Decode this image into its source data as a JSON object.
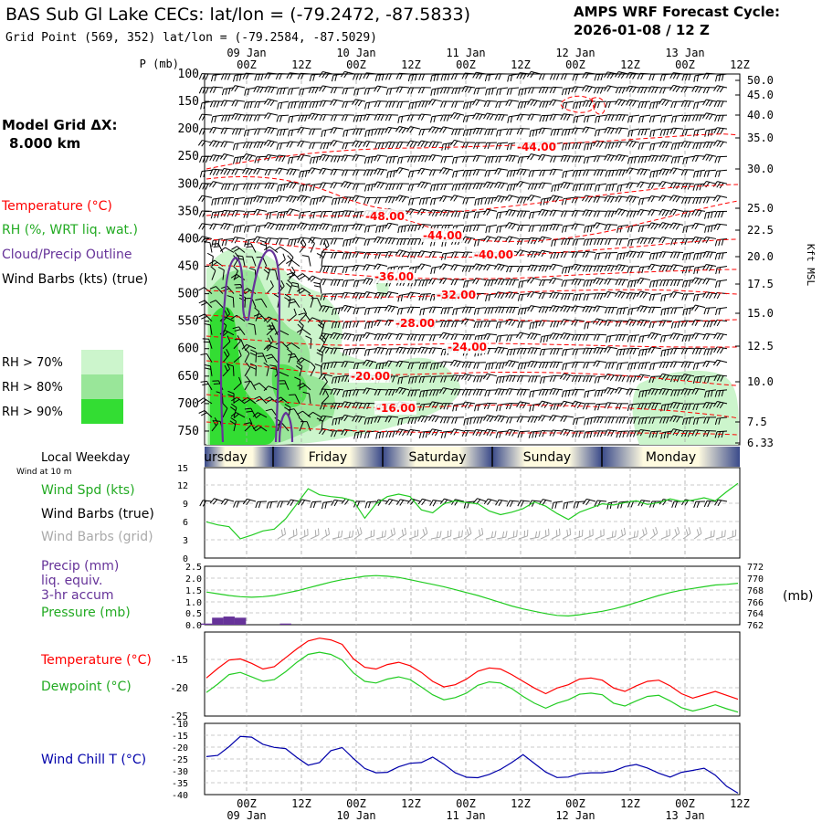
{
  "header": {
    "title": "BAS Sub Gl Lake CECs:  lat/lon = (-79.2472, -87.5833)",
    "subtitle": "Grid Point (569, 352) lat/lon = (-79.2584, -87.5029)",
    "cycle_label": "AMPS WRF Forecast Cycle:",
    "cycle_value": "2026-01-08 / 12  Z"
  },
  "time_axis": {
    "ticks": [
      "00Z",
      "12Z",
      "00Z",
      "12Z",
      "00Z",
      "12Z",
      "00Z",
      "12Z",
      "00Z",
      "12Z"
    ],
    "dates": [
      "09 Jan",
      "10 Jan",
      "11 Jan",
      "12 Jan",
      "13 Jan"
    ],
    "weekdays": [
      "ursday",
      "Friday",
      "Saturday",
      "Sunday",
      "Monday"
    ]
  },
  "sidebar": {
    "grid_label": "Model Grid ΔX:",
    "grid_value": "8.000 km",
    "legend_temperature": "Temperature (°C)",
    "legend_rh": "RH (%, WRT liq. wat.)",
    "legend_cloud": "Cloud/Precip Outline",
    "legend_wind": "Wind Barbs (kts) (true)",
    "rh_levels": [
      "RH > 70%",
      "RH > 80%",
      "RH > 90%"
    ],
    "local_weekday": "Local Weekday",
    "wind_at_10m": "Wind at 10 m",
    "wind_spd": "Wind Spd (kts)",
    "wind_barbs_true": "Wind Barbs (true)",
    "wind_barbs_grid": "Wind Barbs (grid)",
    "precip_1": "Precip (mm)",
    "precip_2": "liq. equiv.",
    "precip_3": "3-hr accum",
    "pressure": "Pressure (mb)",
    "pressure_unit": "(mb)",
    "temp_panel": "Temperature (°C)",
    "dewpoint_panel": "Dewpoint (°C)",
    "windchill_panel": "Wind Chill T (°C)"
  },
  "colors": {
    "temperature": "#ff0000",
    "rh": "#22cc22",
    "cloud": "#663399",
    "windchill": "#0000aa",
    "rh70": "#ccf5cc",
    "rh80": "#99e699",
    "rh90": "#33dd33"
  },
  "chart_data": [
    {
      "type": "contour",
      "name": "cross-section",
      "yaxis_label": "P (mb)",
      "y_ticks": [
        100,
        150,
        200,
        250,
        300,
        350,
        400,
        450,
        500,
        550,
        600,
        650,
        700,
        750
      ],
      "ylim": [
        100,
        775
      ],
      "right_axis_label": "Kft MSL",
      "right_ticks": [
        "50.0",
        "45.0",
        "40.0",
        "35.0",
        "30.0",
        "25.0",
        "22.5",
        "20.0",
        "17.5",
        "15.0",
        "12.5",
        "10.0",
        "7.5",
        "6.33"
      ],
      "isotherm_labels": [
        "-44.00",
        "-48.00",
        "-44.00",
        "-40.00",
        "-36.00",
        "-32.00",
        "-28.00",
        "-24.00",
        "-20.00",
        "-16.00"
      ]
    },
    {
      "type": "line",
      "name": "wind-speed",
      "ylim": [
        0,
        15
      ],
      "y_ticks": [
        "0",
        "3",
        "6",
        "9",
        "12",
        "15"
      ],
      "values": [
        6,
        5.5,
        5.2,
        3.2,
        3.8,
        4.5,
        4.8,
        6.5,
        9,
        11.5,
        10.5,
        10.2,
        10,
        9.5,
        6.6,
        9,
        10.2,
        10.6,
        10.2,
        8,
        7.5,
        9,
        9.5,
        9.2,
        9,
        7.8,
        7.2,
        7.6,
        8.2,
        9.3,
        8.6,
        7.4,
        6.4,
        7.6,
        8.3,
        9,
        8.8,
        9.2,
        9.5,
        8.9,
        9.2,
        9.8,
        9.4,
        9.6,
        10,
        9.5,
        11,
        12.4
      ]
    },
    {
      "type": "bar+line",
      "name": "precip-pressure",
      "precip_ticks": [
        "0.0",
        "0.5",
        "1.0",
        "1.5",
        "2.0",
        "2.5"
      ],
      "pressure_ticks": [
        "762",
        "764",
        "766",
        "768",
        "770",
        "772"
      ],
      "precip_ylim": [
        0,
        2.5
      ],
      "pressure_ylim": [
        762,
        772
      ],
      "precip_values": [
        0.05,
        0.3,
        0.35,
        0.3,
        0,
        0,
        0,
        0.05,
        0,
        0,
        0,
        0,
        0,
        0,
        0,
        0,
        0,
        0,
        0,
        0,
        0,
        0,
        0,
        0,
        0,
        0,
        0,
        0,
        0,
        0,
        0,
        0,
        0,
        0,
        0,
        0,
        0,
        0,
        0,
        0,
        0,
        0,
        0,
        0,
        0,
        0,
        0,
        0
      ],
      "pressure_values": [
        767.6,
        767.3,
        767.0,
        766.8,
        766.7,
        766.8,
        767.0,
        767.4,
        767.8,
        768.3,
        768.8,
        769.3,
        769.7,
        770.0,
        770.3,
        770.4,
        770.3,
        770.1,
        769.7,
        769.3,
        768.9,
        768.5,
        768.0,
        767.5,
        767.0,
        766.4,
        765.8,
        765.2,
        764.7,
        764.3,
        763.9,
        763.6,
        763.5,
        763.7,
        764.0,
        764.3,
        764.7,
        765.2,
        765.8,
        766.4,
        767.0,
        767.5,
        767.9,
        768.2,
        768.5,
        768.8,
        768.9,
        769.1
      ]
    },
    {
      "type": "line",
      "name": "temperature-dewpoint",
      "ylim": [
        -25,
        -10
      ],
      "y_ticks": [
        "-15",
        "-20",
        "-25"
      ],
      "series": [
        {
          "name": "Temperature (°C)",
          "values": [
            -18.2,
            -16.5,
            -15.0,
            -14.8,
            -15.6,
            -16.6,
            -16.2,
            -14.6,
            -13.0,
            -11.6,
            -11.1,
            -11.4,
            -12.2,
            -14.8,
            -16.3,
            -16.6,
            -15.8,
            -15.4,
            -16.0,
            -17.2,
            -18.8,
            -19.8,
            -19.4,
            -18.4,
            -17.0,
            -16.4,
            -16.6,
            -17.6,
            -18.8,
            -20.0,
            -21.0,
            -20.0,
            -19.4,
            -18.4,
            -18.2,
            -18.6,
            -20.0,
            -20.6,
            -19.6,
            -18.8,
            -18.6,
            -19.6,
            -21.0,
            -21.8,
            -21.2,
            -20.6,
            -21.3,
            -22.0
          ]
        },
        {
          "name": "Dewpoint (°C)",
          "values": [
            -20.8,
            -19.3,
            -17.6,
            -17.2,
            -18.0,
            -18.8,
            -18.5,
            -17.1,
            -15.4,
            -14.0,
            -13.6,
            -14.0,
            -15.0,
            -17.3,
            -18.8,
            -19.1,
            -18.4,
            -18.0,
            -18.5,
            -19.8,
            -21.2,
            -22.1,
            -21.7,
            -20.9,
            -19.5,
            -18.9,
            -19.1,
            -20.1,
            -21.5,
            -22.7,
            -23.6,
            -22.7,
            -22.1,
            -21.1,
            -20.9,
            -21.2,
            -22.7,
            -23.2,
            -22.3,
            -21.5,
            -21.3,
            -22.3,
            -23.5,
            -24.1,
            -23.6,
            -23.0,
            -23.7,
            -24.3
          ]
        }
      ]
    },
    {
      "type": "line",
      "name": "wind-chill",
      "ylim": [
        -40,
        -10
      ],
      "y_ticks": [
        "-10",
        "-15",
        "-20",
        "-25",
        "-30",
        "-35",
        "-40"
      ],
      "values": [
        -24,
        -23.5,
        -19.8,
        -15.5,
        -15.8,
        -18.8,
        -20.1,
        -20.6,
        -24.4,
        -27.6,
        -26.5,
        -21.5,
        -20.2,
        -24.8,
        -29.0,
        -30.8,
        -30.6,
        -28.3,
        -26.8,
        -26.5,
        -24.2,
        -27.2,
        -30.8,
        -32.7,
        -32.9,
        -31.5,
        -29.4,
        -26.5,
        -23.2,
        -26.9,
        -30.5,
        -32.8,
        -32.6,
        -31.2,
        -30.8,
        -30.8,
        -30.1,
        -28.2,
        -27.3,
        -28.8,
        -31.0,
        -32.6,
        -30.6,
        -29.8,
        -28.9,
        -31.8,
        -36.5,
        -39.4
      ]
    }
  ]
}
